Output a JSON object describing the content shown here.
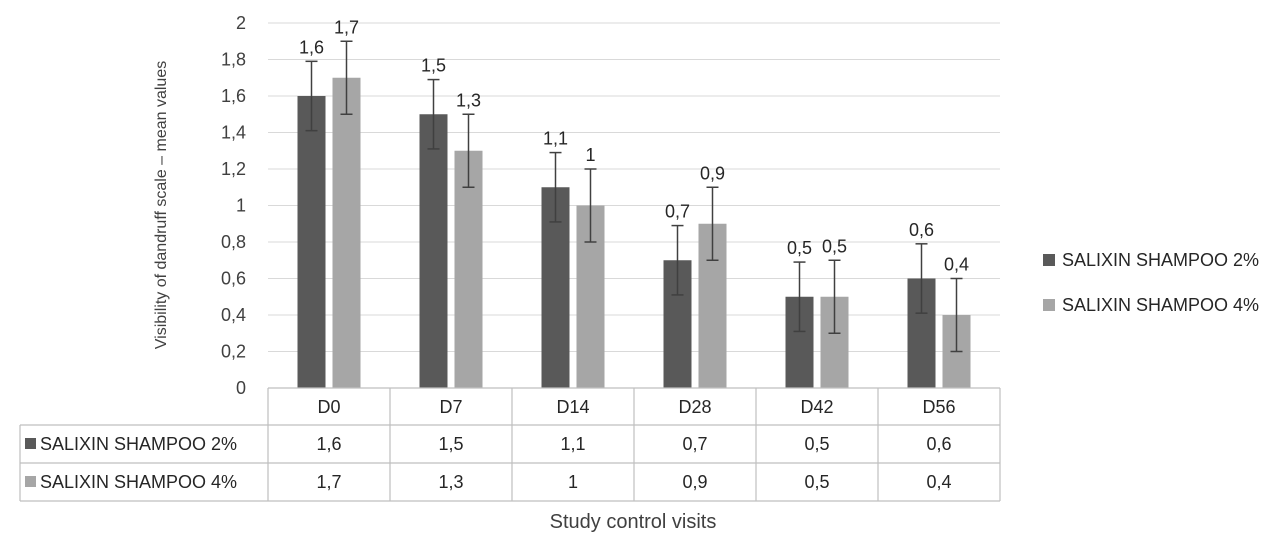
{
  "chart_data": {
    "type": "bar",
    "categories": [
      "D0",
      "D7",
      "D14",
      "D28",
      "D42",
      "D56"
    ],
    "series": [
      {
        "name": "SALIXIN SHAMPOO 2%",
        "color": "#595959",
        "values": [
          1.6,
          1.5,
          1.1,
          0.7,
          0.5,
          0.6
        ],
        "labels": [
          "1,6",
          "1,5",
          "1,1",
          "0,7",
          "0,5",
          "0,6"
        ],
        "error": [
          0.19,
          0.19,
          0.19,
          0.19,
          0.19,
          0.19
        ]
      },
      {
        "name": "SALIXIN SHAMPOO 4%",
        "color": "#a6a6a6",
        "values": [
          1.7,
          1.3,
          1.0,
          0.9,
          0.5,
          0.4
        ],
        "labels": [
          "1,7",
          "1,3",
          "1",
          "0,9",
          "0,5",
          "0,4"
        ],
        "error": [
          0.2,
          0.2,
          0.2,
          0.2,
          0.2,
          0.2
        ]
      }
    ],
    "yticks": [
      "0",
      "0,2",
      "0,4",
      "0,6",
      "0,8",
      "1",
      "1,2",
      "1,4",
      "1,6",
      "1,8",
      "2"
    ],
    "ylim": [
      0,
      2
    ],
    "ylabel": "Visibility of dandruff scale – mean values",
    "xlabel": "Study control visits",
    "legend_position": "right",
    "grid": true,
    "data_table": true
  }
}
